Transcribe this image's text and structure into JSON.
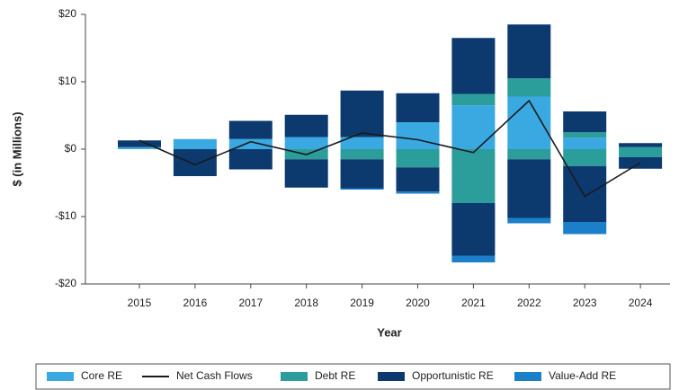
{
  "chart_data": {
    "type": "bar",
    "x_label": "Year",
    "y_label": "$ (in Millions)",
    "categories": [
      "2015",
      "2016",
      "2017",
      "2018",
      "2019",
      "2020",
      "2021",
      "2022",
      "2023",
      "2024"
    ],
    "ylim": [
      -20,
      20
    ],
    "yticks": [
      {
        "value": 20,
        "label": "$20"
      },
      {
        "value": 10,
        "label": "$10"
      },
      {
        "value": 0,
        "label": "$0"
      },
      {
        "value": -10,
        "label": "-$10"
      },
      {
        "value": -20,
        "label": "-$20"
      }
    ],
    "stacked": true,
    "series": [
      {
        "name": "Core RE",
        "color": "#3aa9e2",
        "values": [
          0.3,
          1.5,
          1.5,
          1.8,
          1.8,
          4.0,
          6.5,
          7.8,
          1.7,
          0
        ],
        "negative_values": [
          0,
          0,
          0,
          0,
          0,
          0,
          0,
          0,
          0,
          0
        ]
      },
      {
        "name": "Net Cash Flows",
        "type": "line",
        "color": "#1a1a1a",
        "values": [
          1.3,
          -2.3,
          1.1,
          -0.8,
          2.4,
          1.4,
          -0.5,
          7.2,
          -7.0,
          -2.0
        ]
      },
      {
        "name": "Debt RE",
        "color": "#2b9e9b",
        "values": [
          0,
          0,
          0,
          0,
          0,
          0,
          1.7,
          2.7,
          0.8,
          0.3
        ],
        "negative_values": [
          0,
          0,
          0,
          -1.5,
          -1.5,
          -2.7,
          -8.0,
          -1.5,
          -2.5,
          -1.2
        ]
      },
      {
        "name": "Opportunistic RE",
        "color": "#0c3a6f",
        "values": [
          1.0,
          0,
          2.7,
          3.3,
          6.9,
          4.3,
          8.3,
          8.0,
          3.1,
          0.6
        ],
        "negative_values": [
          0,
          -4.0,
          -3.0,
          -4.2,
          -4.3,
          -3.6,
          -7.8,
          -8.7,
          -8.3,
          -1.7
        ]
      },
      {
        "name": "Value-Add RE",
        "color": "#1b7fc9",
        "values": [
          0,
          0,
          0,
          0,
          0,
          0,
          0,
          0,
          0,
          0
        ],
        "negative_values": [
          0,
          0,
          0,
          0,
          -0.2,
          -0.3,
          -1.0,
          -0.8,
          -1.8,
          0
        ]
      }
    ]
  }
}
